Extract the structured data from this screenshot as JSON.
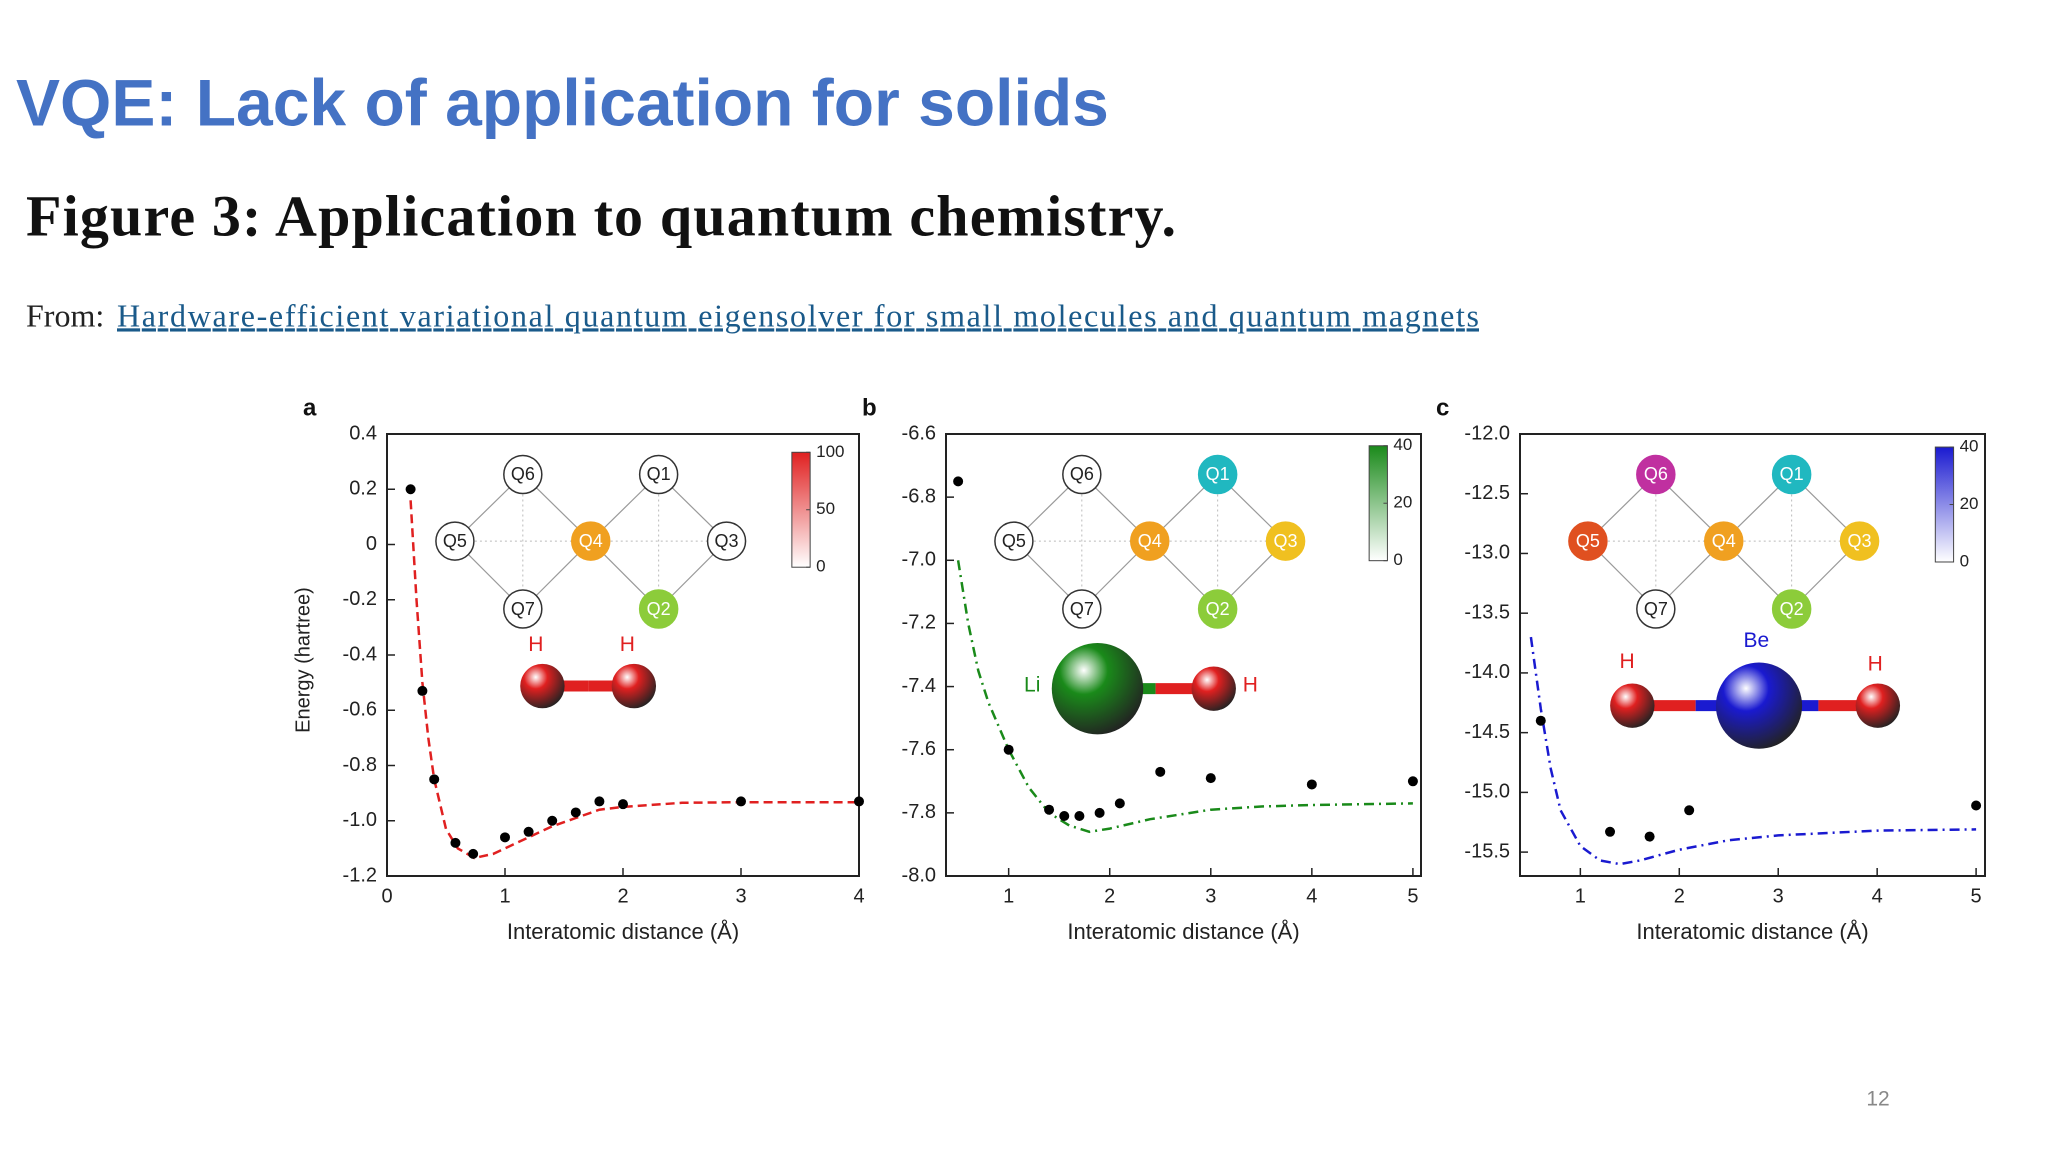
{
  "slide_title": "VQE: Lack of application for solids",
  "figure_title": "Figure 3: Application to quantum chemistry.",
  "source": {
    "prefix": "From:",
    "link": "Hardware-efficient variational quantum eigensolver for small molecules and quantum magnets"
  },
  "page_number": "12",
  "chart_data": [
    {
      "type": "scatter",
      "panel": "a",
      "x_label": "Interatomic distance (Å)",
      "y_label": "Energy (hartree)",
      "xlim": [
        0,
        4
      ],
      "ylim": [
        -1.2,
        0.4
      ],
      "xticks": [
        0,
        1,
        2,
        3,
        4
      ],
      "yticks": [
        -1.2,
        {
          "value": -1,
          "label": "-1.0"
        },
        -0.8,
        -0.6,
        -0.4,
        -0.2,
        0,
        0.2,
        0.4
      ],
      "series": [
        {
          "color": "#e02020",
          "style": "dashed",
          "x": [
            0.2,
            0.25,
            0.3,
            0.35,
            0.4,
            0.5,
            0.6,
            0.74,
            0.9,
            1.0,
            1.2,
            1.4,
            1.6,
            1.8,
            2.0,
            2.5,
            3,
            4
          ],
          "values": [
            0.16,
            -0.2,
            -0.5,
            -0.7,
            -0.85,
            -1.03,
            -1.1,
            -1.135,
            -1.12,
            -1.1,
            -1.06,
            -1.02,
            -0.99,
            -0.96,
            -0.95,
            -0.935,
            -0.933,
            -0.933
          ]
        },
        {
          "color": "#000000",
          "style": "markers",
          "x": [
            0.2,
            0.3,
            0.4,
            0.58,
            0.73,
            1.0,
            1.2,
            1.4,
            1.6,
            1.8,
            2.0,
            3.0,
            4.0
          ],
          "values": [
            0.2,
            -0.53,
            -0.85,
            -1.08,
            -1.12,
            -1.06,
            -1.04,
            -1.0,
            -0.97,
            -0.93,
            -0.94,
            -0.93,
            -0.93
          ]
        }
      ],
      "colorbar": {
        "color": "#e02020",
        "lim": [
          0,
          100
        ],
        "ticks": [
          0,
          50,
          100
        ]
      },
      "qubits": [
        {
          "label": "Q6",
          "color": "#ffffff"
        },
        {
          "label": "Q1",
          "color": "#ffffff"
        },
        {
          "label": "Q5",
          "color": "#ffffff"
        },
        {
          "label": "Q4",
          "color": "#f0a020"
        },
        {
          "label": "Q3",
          "color": "#ffffff"
        },
        {
          "label": "Q7",
          "color": "#ffffff"
        },
        {
          "label": "Q2",
          "color": "#8ccc3a"
        }
      ],
      "molecule": [
        {
          "label": "H",
          "color": "#e02020"
        },
        {
          "label": "H",
          "color": "#e02020"
        }
      ]
    },
    {
      "type": "scatter",
      "panel": "b",
      "x_label": "Interatomic distance (Å)",
      "xlim": [
        0.38,
        5.08
      ],
      "ylim": [
        -8.0,
        -6.6
      ],
      "xticks": [
        1,
        2,
        3,
        4,
        5
      ],
      "yticks": [
        {
          "value": -8,
          "label": "-8.0"
        },
        -7.8,
        -7.6,
        -7.4,
        -7.2,
        {
          "value": -7,
          "label": "-7.0"
        },
        -6.8,
        -6.6
      ],
      "series": [
        {
          "color": "#1a8a1a",
          "style": "dashdot",
          "x": [
            0.5,
            0.6,
            0.7,
            0.8,
            1.0,
            1.2,
            1.4,
            1.6,
            1.8,
            2.0,
            2.4,
            3.0,
            3.5,
            4,
            5
          ],
          "values": [
            -7.0,
            -7.2,
            -7.35,
            -7.45,
            -7.6,
            -7.72,
            -7.8,
            -7.84,
            -7.86,
            -7.85,
            -7.82,
            -7.79,
            -7.78,
            -7.775,
            -7.77
          ]
        },
        {
          "color": "#000000",
          "style": "markers",
          "x": [
            0.5,
            1.0,
            1.4,
            1.55,
            1.7,
            1.9,
            2.1,
            2.5,
            3.0,
            4.0,
            5.0
          ],
          "values": [
            -6.75,
            -7.6,
            -7.79,
            -7.81,
            -7.81,
            -7.8,
            -7.77,
            -7.67,
            -7.69,
            -7.71,
            -7.7
          ]
        }
      ],
      "colorbar": {
        "color": "#1a8a1a",
        "lim": [
          0,
          40
        ],
        "ticks": [
          0,
          20,
          40
        ]
      },
      "qubits": [
        {
          "label": "Q6",
          "color": "#ffffff"
        },
        {
          "label": "Q1",
          "color": "#20b8c0"
        },
        {
          "label": "Q5",
          "color": "#ffffff"
        },
        {
          "label": "Q4",
          "color": "#f0a020"
        },
        {
          "label": "Q3",
          "color": "#f0c020"
        },
        {
          "label": "Q7",
          "color": "#ffffff"
        },
        {
          "label": "Q2",
          "color": "#8ccc3a"
        }
      ],
      "molecule": [
        {
          "label": "Li",
          "color": "#1a8a1a"
        },
        {
          "label": "H",
          "color": "#e02020"
        }
      ]
    },
    {
      "type": "scatter",
      "panel": "c",
      "x_label": "Interatomic distance (Å)",
      "xlim": [
        0.39,
        5.09
      ],
      "ylim": [
        -15.7,
        -12.0
      ],
      "xticks": [
        1,
        2,
        3,
        4,
        5
      ],
      "yticks": [
        -15.5,
        {
          "value": -15,
          "label": "-15.0"
        },
        -14.5,
        {
          "value": -14,
          "label": "-14.0"
        },
        -13.5,
        {
          "value": -13,
          "label": "-13.0"
        },
        -12.5,
        {
          "value": -12,
          "label": "-12.0"
        }
      ],
      "series": [
        {
          "color": "#1a1ad0",
          "style": "dashdot",
          "x": [
            0.5,
            0.6,
            0.7,
            0.8,
            1.0,
            1.2,
            1.4,
            1.6,
            2.0,
            2.5,
            3,
            4,
            5
          ],
          "values": [
            -13.7,
            -14.3,
            -14.8,
            -15.15,
            -15.45,
            -15.57,
            -15.6,
            -15.57,
            -15.48,
            -15.4,
            -15.36,
            -15.32,
            -15.31
          ]
        },
        {
          "color": "#000000",
          "style": "markers",
          "x": [
            0.6,
            1.3,
            1.7,
            2.1,
            5.0
          ],
          "values": [
            -14.4,
            -15.33,
            -15.37,
            -15.15,
            -15.11
          ]
        }
      ],
      "colorbar": {
        "color": "#1a1ad0",
        "lim": [
          0,
          40
        ],
        "ticks": [
          0,
          20,
          40
        ]
      },
      "qubits": [
        {
          "label": "Q6",
          "color": "#c030a0"
        },
        {
          "label": "Q1",
          "color": "#20b8c0"
        },
        {
          "label": "Q5",
          "color": "#e05020"
        },
        {
          "label": "Q4",
          "color": "#f0a020"
        },
        {
          "label": "Q3",
          "color": "#f0c020"
        },
        {
          "label": "Q7",
          "color": "#ffffff"
        },
        {
          "label": "Q2",
          "color": "#8ccc3a"
        }
      ],
      "molecule": [
        {
          "label": "H",
          "color": "#e02020"
        },
        {
          "label": "Be",
          "color": "#1a1ad0"
        },
        {
          "label": "H",
          "color": "#e02020"
        }
      ]
    }
  ]
}
